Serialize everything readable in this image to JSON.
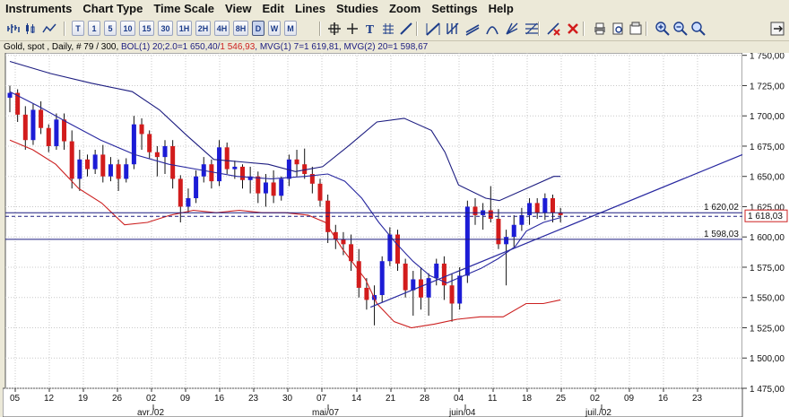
{
  "menu": [
    "Instruments",
    "Chart Type",
    "Time Scale",
    "View",
    "Edit",
    "Lines",
    "Studies",
    "Zoom",
    "Settings",
    "Help"
  ],
  "toolbar": {
    "timeframes": [
      "T",
      "1",
      "5",
      "10",
      "15",
      "30",
      "1H",
      "2H",
      "4H",
      "8H",
      "D",
      "W",
      "M"
    ],
    "active_timeframe": "D",
    "icons_left": [
      "bar-chart-icon",
      "candlestick-icon",
      "line-chart-icon"
    ],
    "icons_right": [
      "crosshair-icon",
      "cursor-icon",
      "text-icon",
      "grid-icon",
      "line-tool-icon",
      "trend-line-icon",
      "fibonacci-icon",
      "channel-icon",
      "arc-icon",
      "fan-icon",
      "retracement-icon",
      "delete-line-icon",
      "delete-all-icon",
      "print-icon",
      "print-preview-icon",
      "copy-icon",
      "zoom-in-icon",
      "zoom-out-icon",
      "zoom-reset-icon",
      "minimize-icon"
    ]
  },
  "info": {
    "instrument": "Gold, spot , Daily, # 79 / 300,",
    "bol": "BOL(1) 20;2.0=1 650,40/",
    "bol_low": "1 546,93",
    "mvg1": ", MVG(1) 7=1 619,81,",
    "mvg2": "MVG(2) 20=1 598,67"
  },
  "colors": {
    "up": "#1c1cd6",
    "down": "#d21c1c",
    "bollinger": "#1c1c80",
    "lower_band": "#cc2020",
    "moving_avg": "#2828a0",
    "trend": "#2828a0"
  },
  "price_labels": {
    "resistance": "1 620,02",
    "support": "1 598,03",
    "last": "1 618,03"
  },
  "chart_data": {
    "type": "candlestick",
    "y_ticks": [
      "1 475,00",
      "1 500,00",
      "1 525,00",
      "1 550,00",
      "1 575,00",
      "1 600,00",
      "1 625,00",
      "1 650,00",
      "1 675,00",
      "1 700,00",
      "1 725,00",
      "1 750,00"
    ],
    "ylim": [
      1475,
      1752
    ],
    "x_ticks": [
      "05",
      "12",
      "19",
      "26",
      "02",
      "09",
      "16",
      "23",
      "30",
      "07",
      "14",
      "21",
      "28",
      "04",
      "11",
      "18",
      "25",
      "02",
      "09",
      "16",
      "23"
    ],
    "month_labels": [
      "avr./02",
      "mai/07",
      "juin/04",
      "juil./02"
    ],
    "horizontal_lines": [
      1620.02,
      1598.03
    ],
    "candles": [
      {
        "o": 1715,
        "h": 1725,
        "l": 1703,
        "c": 1719
      },
      {
        "o": 1719,
        "h": 1722,
        "l": 1695,
        "c": 1701
      },
      {
        "o": 1701,
        "h": 1708,
        "l": 1672,
        "c": 1680
      },
      {
        "o": 1680,
        "h": 1710,
        "l": 1676,
        "c": 1705
      },
      {
        "o": 1705,
        "h": 1712,
        "l": 1685,
        "c": 1690
      },
      {
        "o": 1690,
        "h": 1693,
        "l": 1670,
        "c": 1675
      },
      {
        "o": 1675,
        "h": 1702,
        "l": 1672,
        "c": 1697
      },
      {
        "o": 1697,
        "h": 1702,
        "l": 1672,
        "c": 1679
      },
      {
        "o": 1679,
        "h": 1688,
        "l": 1640,
        "c": 1648
      },
      {
        "o": 1648,
        "h": 1672,
        "l": 1638,
        "c": 1664
      },
      {
        "o": 1664,
        "h": 1668,
        "l": 1650,
        "c": 1656
      },
      {
        "o": 1656,
        "h": 1672,
        "l": 1652,
        "c": 1668
      },
      {
        "o": 1668,
        "h": 1676,
        "l": 1645,
        "c": 1650
      },
      {
        "o": 1650,
        "h": 1666,
        "l": 1646,
        "c": 1660
      },
      {
        "o": 1660,
        "h": 1664,
        "l": 1638,
        "c": 1648
      },
      {
        "o": 1648,
        "h": 1665,
        "l": 1645,
        "c": 1660
      },
      {
        "o": 1660,
        "h": 1700,
        "l": 1656,
        "c": 1693
      },
      {
        "o": 1693,
        "h": 1698,
        "l": 1672,
        "c": 1685
      },
      {
        "o": 1685,
        "h": 1688,
        "l": 1665,
        "c": 1670
      },
      {
        "o": 1670,
        "h": 1675,
        "l": 1650,
        "c": 1666
      },
      {
        "o": 1666,
        "h": 1680,
        "l": 1652,
        "c": 1675
      },
      {
        "o": 1675,
        "h": 1680,
        "l": 1640,
        "c": 1648
      },
      {
        "o": 1648,
        "h": 1651,
        "l": 1612,
        "c": 1625
      },
      {
        "o": 1625,
        "h": 1640,
        "l": 1620,
        "c": 1632
      },
      {
        "o": 1632,
        "h": 1655,
        "l": 1628,
        "c": 1650
      },
      {
        "o": 1650,
        "h": 1666,
        "l": 1645,
        "c": 1660
      },
      {
        "o": 1660,
        "h": 1664,
        "l": 1640,
        "c": 1646
      },
      {
        "o": 1646,
        "h": 1680,
        "l": 1642,
        "c": 1674
      },
      {
        "o": 1674,
        "h": 1678,
        "l": 1652,
        "c": 1656
      },
      {
        "o": 1656,
        "h": 1663,
        "l": 1648,
        "c": 1658
      },
      {
        "o": 1658,
        "h": 1660,
        "l": 1640,
        "c": 1647
      },
      {
        "o": 1647,
        "h": 1658,
        "l": 1636,
        "c": 1650
      },
      {
        "o": 1650,
        "h": 1654,
        "l": 1628,
        "c": 1636
      },
      {
        "o": 1636,
        "h": 1652,
        "l": 1625,
        "c": 1645
      },
      {
        "o": 1645,
        "h": 1655,
        "l": 1628,
        "c": 1634
      },
      {
        "o": 1634,
        "h": 1650,
        "l": 1630,
        "c": 1648
      },
      {
        "o": 1648,
        "h": 1668,
        "l": 1642,
        "c": 1664
      },
      {
        "o": 1664,
        "h": 1672,
        "l": 1650,
        "c": 1660
      },
      {
        "o": 1660,
        "h": 1673,
        "l": 1648,
        "c": 1652
      },
      {
        "o": 1652,
        "h": 1658,
        "l": 1636,
        "c": 1644
      },
      {
        "o": 1644,
        "h": 1648,
        "l": 1625,
        "c": 1630
      },
      {
        "o": 1630,
        "h": 1635,
        "l": 1595,
        "c": 1604
      },
      {
        "o": 1604,
        "h": 1610,
        "l": 1590,
        "c": 1598
      },
      {
        "o": 1598,
        "h": 1604,
        "l": 1585,
        "c": 1594
      },
      {
        "o": 1594,
        "h": 1602,
        "l": 1572,
        "c": 1580
      },
      {
        "o": 1580,
        "h": 1590,
        "l": 1550,
        "c": 1558
      },
      {
        "o": 1558,
        "h": 1566,
        "l": 1540,
        "c": 1548
      },
      {
        "o": 1548,
        "h": 1560,
        "l": 1527,
        "c": 1552
      },
      {
        "o": 1552,
        "h": 1584,
        "l": 1546,
        "c": 1580
      },
      {
        "o": 1580,
        "h": 1608,
        "l": 1576,
        "c": 1602
      },
      {
        "o": 1602,
        "h": 1606,
        "l": 1572,
        "c": 1578
      },
      {
        "o": 1578,
        "h": 1582,
        "l": 1550,
        "c": 1556
      },
      {
        "o": 1556,
        "h": 1572,
        "l": 1535,
        "c": 1565
      },
      {
        "o": 1565,
        "h": 1575,
        "l": 1540,
        "c": 1550
      },
      {
        "o": 1550,
        "h": 1570,
        "l": 1535,
        "c": 1566
      },
      {
        "o": 1566,
        "h": 1582,
        "l": 1560,
        "c": 1578
      },
      {
        "o": 1578,
        "h": 1584,
        "l": 1548,
        "c": 1560
      },
      {
        "o": 1560,
        "h": 1570,
        "l": 1530,
        "c": 1545
      },
      {
        "o": 1545,
        "h": 1575,
        "l": 1540,
        "c": 1568
      },
      {
        "o": 1568,
        "h": 1630,
        "l": 1562,
        "c": 1625
      },
      {
        "o": 1625,
        "h": 1632,
        "l": 1610,
        "c": 1618
      },
      {
        "o": 1618,
        "h": 1628,
        "l": 1606,
        "c": 1622
      },
      {
        "o": 1622,
        "h": 1642,
        "l": 1612,
        "c": 1615
      },
      {
        "o": 1615,
        "h": 1623,
        "l": 1590,
        "c": 1594
      },
      {
        "o": 1594,
        "h": 1606,
        "l": 1560,
        "c": 1600
      },
      {
        "o": 1600,
        "h": 1618,
        "l": 1592,
        "c": 1610
      },
      {
        "o": 1610,
        "h": 1624,
        "l": 1605,
        "c": 1618
      },
      {
        "o": 1618,
        "h": 1632,
        "l": 1610,
        "c": 1628
      },
      {
        "o": 1628,
        "h": 1632,
        "l": 1615,
        "c": 1620
      },
      {
        "o": 1620,
        "h": 1636,
        "l": 1614,
        "c": 1632
      },
      {
        "o": 1632,
        "h": 1635,
        "l": 1612,
        "c": 1620
      },
      {
        "o": 1620,
        "h": 1624,
        "l": 1612,
        "c": 1618
      }
    ],
    "bollinger_upper": [
      [
        0,
        1745
      ],
      [
        6,
        1735
      ],
      [
        12,
        1727
      ],
      [
        18,
        1720
      ],
      [
        22,
        1705
      ],
      [
        26,
        1684
      ],
      [
        30,
        1664
      ],
      [
        34,
        1662
      ],
      [
        38,
        1660
      ],
      [
        42,
        1654
      ],
      [
        46,
        1658
      ],
      [
        50,
        1676
      ],
      [
        54,
        1695
      ],
      [
        58,
        1698
      ],
      [
        62,
        1688
      ],
      [
        64,
        1670
      ],
      [
        66,
        1643
      ],
      [
        70,
        1632
      ],
      [
        72,
        1630
      ],
      [
        76,
        1640
      ],
      [
        80,
        1650
      ],
      [
        81,
        1650
      ]
    ],
    "bollinger_lower": [
      [
        0,
        1680
      ],
      [
        4,
        1672
      ],
      [
        8,
        1660
      ],
      [
        12,
        1640
      ],
      [
        16,
        1628
      ],
      [
        20,
        1610
      ],
      [
        24,
        1612
      ],
      [
        28,
        1618
      ],
      [
        32,
        1622
      ],
      [
        36,
        1620
      ],
      [
        40,
        1622
      ],
      [
        44,
        1620
      ],
      [
        48,
        1620
      ],
      [
        52,
        1618
      ],
      [
        55,
        1612
      ],
      [
        58,
        1590
      ],
      [
        62,
        1565
      ],
      [
        64,
        1545
      ],
      [
        67,
        1530
      ],
      [
        70,
        1525
      ],
      [
        74,
        1528
      ],
      [
        78,
        1532
      ],
      [
        82,
        1534
      ],
      [
        86,
        1534
      ],
      [
        90,
        1545
      ],
      [
        93,
        1545
      ],
      [
        96,
        1548
      ]
    ],
    "moving_avg": [
      [
        0,
        1720
      ],
      [
        5,
        1708
      ],
      [
        10,
        1695
      ],
      [
        16,
        1680
      ],
      [
        22,
        1668
      ],
      [
        28,
        1660
      ],
      [
        34,
        1655
      ],
      [
        40,
        1650
      ],
      [
        46,
        1648
      ],
      [
        52,
        1650
      ],
      [
        56,
        1652
      ],
      [
        59,
        1646
      ],
      [
        62,
        1632
      ],
      [
        65,
        1612
      ],
      [
        68,
        1595
      ],
      [
        71,
        1580
      ],
      [
        74,
        1568
      ],
      [
        77,
        1562
      ],
      [
        80,
        1568
      ],
      [
        83,
        1574
      ],
      [
        86,
        1582
      ],
      [
        89,
        1592
      ],
      [
        91,
        1605
      ],
      [
        94,
        1612
      ],
      [
        97,
        1616
      ]
    ],
    "trendline": [
      [
        64,
        1542
      ],
      [
        129,
        1668
      ]
    ]
  }
}
